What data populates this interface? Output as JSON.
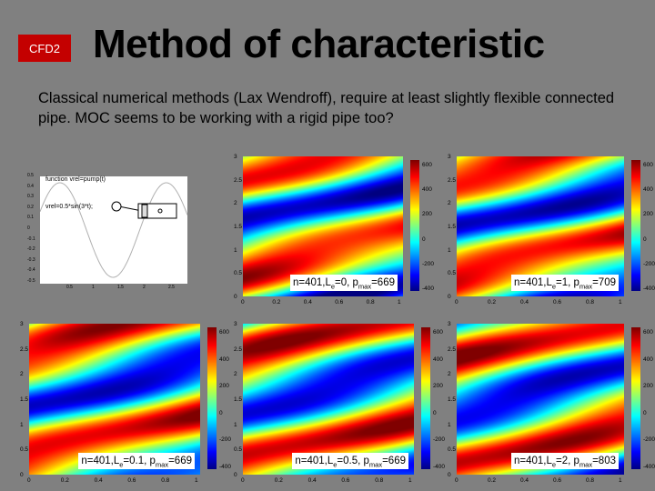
{
  "slide": {
    "badge": "CFD2",
    "title": "Method of characteristic",
    "subtitle": "Classical numerical methods (Lax Wendroff), require at least slightly flexible connected pipe. MOC seems to be working with a rigid pipe too?"
  },
  "inset": {
    "code_line1": "function vrel=pump(t)",
    "code_line2": "vrel=0.5*sin(3*t);",
    "y_ticks": [
      "0.5",
      "0.4",
      "0.3",
      "0.2",
      "0.1",
      "0",
      "-0.1",
      "-0.2",
      "-0.3",
      "-0.4",
      "-0.5"
    ],
    "x_ticks": [
      "0.5",
      "1",
      "1.5",
      "2",
      "2.5"
    ]
  },
  "plots": [
    {
      "label_pre": "n=401,L",
      "label_sub_e": "e",
      "label_mid": "=0, p",
      "label_sub_max": "max",
      "label_val": "=669",
      "y_ticks": [
        "3",
        "2.5",
        "2",
        "1.5",
        "1",
        "0.5",
        "0"
      ],
      "x_ticks": [
        "0",
        "0.2",
        "0.4",
        "0.6",
        "0.8",
        "1"
      ],
      "cbar_ticks": [
        "600",
        "400",
        "200",
        "0",
        "-200",
        "-400"
      ]
    },
    {
      "label_pre": "n=401,L",
      "label_sub_e": "e",
      "label_mid": "=1, p",
      "label_sub_max": "max",
      "label_val": "=709",
      "y_ticks": [
        "3",
        "2.5",
        "2",
        "1.5",
        "1",
        "0.5",
        "0"
      ],
      "x_ticks": [
        "0",
        "0.2",
        "0.4",
        "0.6",
        "0.8",
        "1"
      ],
      "cbar_ticks": [
        "600",
        "400",
        "200",
        "0",
        "-200",
        "-400"
      ]
    },
    {
      "label_pre": "n=401,L",
      "label_sub_e": "e",
      "label_mid": "=0.1, p",
      "label_sub_max": "max",
      "label_val": "=669",
      "y_ticks": [
        "3",
        "2.5",
        "2",
        "1.5",
        "1",
        "0.5",
        "0"
      ],
      "x_ticks": [
        "0",
        "0.2",
        "0.4",
        "0.6",
        "0.8",
        "1"
      ],
      "cbar_ticks": [
        "600",
        "400",
        "200",
        "0",
        "-200",
        "-400"
      ]
    },
    {
      "label_pre": "n=401,L",
      "label_sub_e": "e",
      "label_mid": "=0.5, p",
      "label_sub_max": "max",
      "label_val": "=669",
      "y_ticks": [
        "3",
        "2.5",
        "2",
        "1.5",
        "1",
        "0.5",
        "0"
      ],
      "x_ticks": [
        "0",
        "0.2",
        "0.4",
        "0.6",
        "0.8",
        "1"
      ],
      "cbar_ticks": [
        "600",
        "400",
        "200",
        "0",
        "-200",
        "-400"
      ]
    },
    {
      "label_pre": "n=401,L",
      "label_sub_e": "e",
      "label_mid": "=2, p",
      "label_sub_max": "max",
      "label_val": "=803",
      "y_ticks": [
        "3",
        "2.5",
        "2",
        "1.5",
        "1",
        "0.5",
        "0"
      ],
      "x_ticks": [
        "0",
        "0.2",
        "0.4",
        "0.6",
        "0.8",
        "1"
      ],
      "cbar_ticks": [
        "600",
        "400",
        "200",
        "0",
        "-200",
        "-400"
      ]
    }
  ],
  "colors": {
    "background": "#808080",
    "badge": "#c40000"
  }
}
